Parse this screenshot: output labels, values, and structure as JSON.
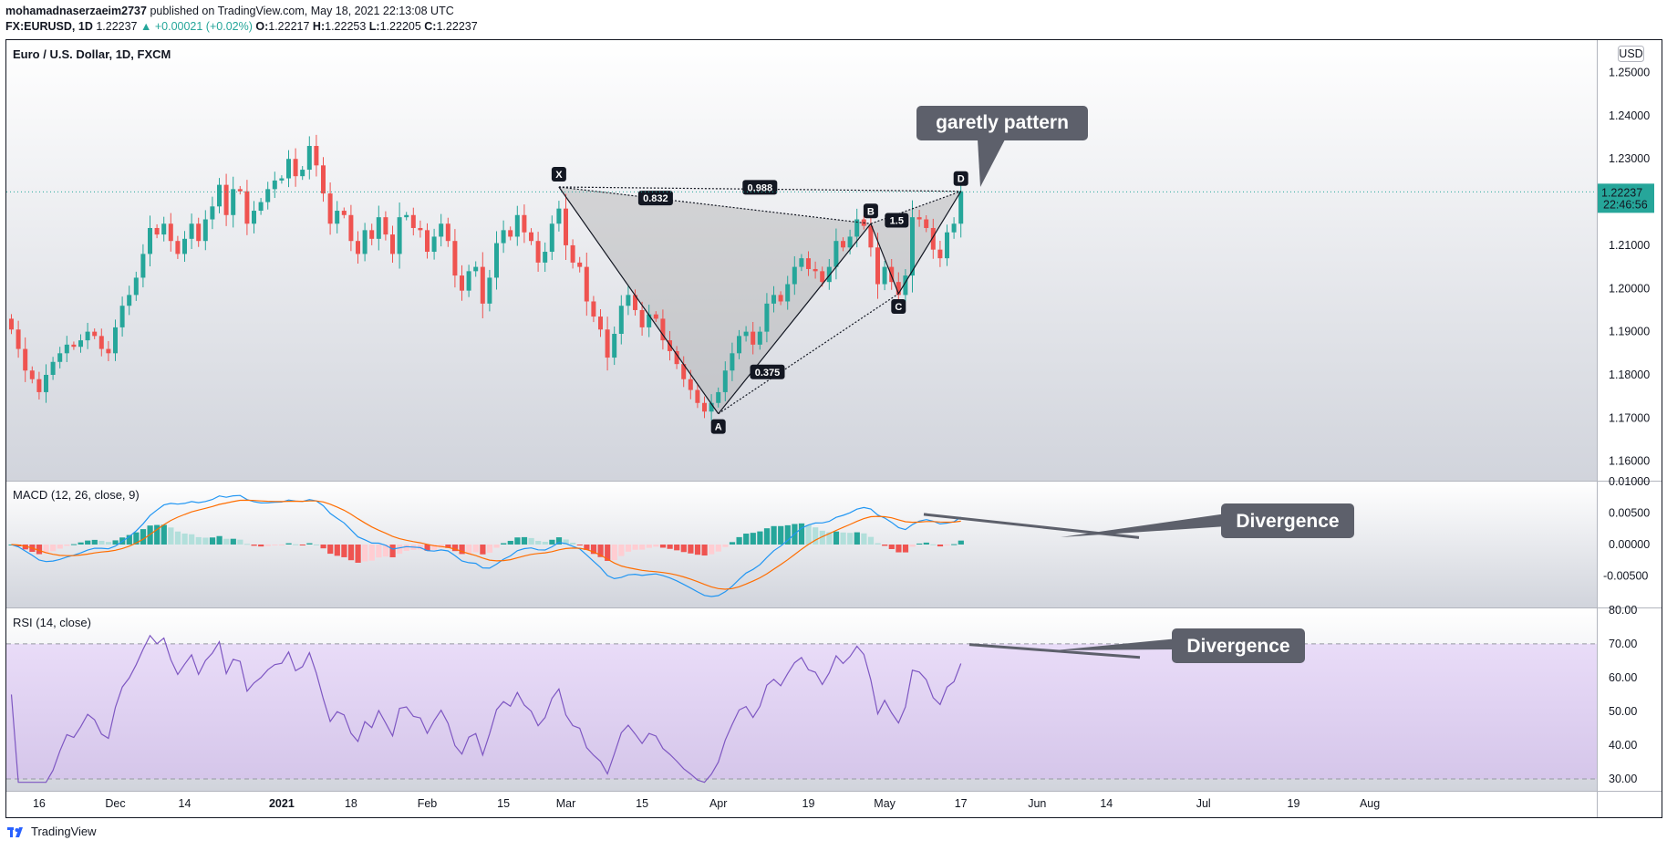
{
  "header": {
    "line1_user": "mohamadnaserzaeim2737",
    "line1_rest": "published on TradingView.com, May 18, 2021 22:13:08 UTC",
    "symbol": "FX:EURUSD, 1D",
    "last": "1.22237",
    "change": "▲ +0.00021 (+0.02%)",
    "o_label": "O:",
    "o": "1.22217",
    "h_label": "H:",
    "h": "1.22253",
    "l_label": "L:",
    "l": "1.22205",
    "c_label": "C:",
    "c": "1.22237"
  },
  "price_pane": {
    "title": "Euro / U.S. Dollar, 1D, FXCM",
    "currency": "USD",
    "last_price": "1.22237",
    "countdown": "22:46:56"
  },
  "macd_pane": {
    "title": "MACD (12, 26, close, 9)"
  },
  "rsi_pane": {
    "title": "RSI (14, close)"
  },
  "footer": {
    "brand": "TradingView"
  },
  "annotations": {
    "pattern_label": "garetly pattern",
    "macd_callout": "Divergence",
    "rsi_callout": "Divergence",
    "points": [
      "X",
      "A",
      "B",
      "C",
      "D"
    ],
    "ratios": {
      "xb": "0.832",
      "xd": "0.988",
      "ac": "0.375",
      "bd": "1.5"
    }
  },
  "colors": {
    "up": "#26a69a",
    "down": "#ef5350",
    "macd_line": "#2196f3",
    "signal_line": "#ff6d00",
    "rsi_line": "#7e57c2",
    "rsi_band": "#e1d5f3",
    "pattern_fill": "#9e9e9e",
    "callout_bg": "#5d606b"
  },
  "chart_data": [
    {
      "type": "candlestick",
      "title": "Euro / U.S. Dollar, 1D, FXCM",
      "y_ticks": [
        "1.25000",
        "1.24000",
        "1.23000",
        "1.22000",
        "1.21000",
        "1.20000",
        "1.19000",
        "1.18000",
        "1.17000",
        "1.16000"
      ],
      "ylim": [
        1.1555,
        1.2575
      ],
      "x_ticks": [
        {
          "label": "16",
          "i": 4
        },
        {
          "label": "Dec",
          "i": 15
        },
        {
          "label": "14",
          "i": 25
        },
        {
          "label": "2021",
          "i": 39
        },
        {
          "label": "18",
          "i": 49
        },
        {
          "label": "Feb",
          "i": 60
        },
        {
          "label": "15",
          "i": 71
        },
        {
          "label": "Mar",
          "i": 80
        },
        {
          "label": "15",
          "i": 91
        },
        {
          "label": "Apr",
          "i": 102
        },
        {
          "label": "19",
          "i": 115
        },
        {
          "label": "May",
          "i": 126
        },
        {
          "label": "17",
          "i": 137
        },
        {
          "label": "Jun",
          "i": 148
        },
        {
          "label": "14",
          "i": 158
        },
        {
          "label": "Jul",
          "i": 172
        },
        {
          "label": "19",
          "i": 185
        },
        {
          "label": "Aug",
          "i": 196
        }
      ],
      "pattern_points": {
        "X": [
          79,
          1.2235
        ],
        "A": [
          102,
          1.171
        ],
        "B": [
          124,
          1.215
        ],
        "C": [
          128,
          1.1988
        ],
        "D": [
          137,
          1.2225
        ]
      },
      "close": [
        1.1905,
        1.186,
        1.181,
        1.179,
        1.176,
        1.18,
        1.183,
        1.185,
        1.187,
        1.1865,
        1.188,
        1.19,
        1.189,
        1.186,
        1.185,
        1.191,
        1.196,
        1.1985,
        1.2025,
        1.208,
        1.214,
        1.2125,
        1.215,
        1.211,
        1.208,
        1.2115,
        1.215,
        1.211,
        1.216,
        1.219,
        1.224,
        1.217,
        1.223,
        1.2225,
        1.215,
        1.218,
        1.22,
        1.223,
        1.225,
        1.2255,
        1.23,
        1.226,
        1.2275,
        1.233,
        1.2285,
        1.222,
        1.215,
        1.218,
        1.217,
        1.211,
        1.208,
        1.2135,
        1.2115,
        1.2165,
        1.2125,
        1.208,
        1.2165,
        1.217,
        1.214,
        1.2135,
        1.2085,
        1.212,
        1.215,
        1.211,
        1.203,
        1.1995,
        1.204,
        1.205,
        1.1965,
        1.2025,
        1.2105,
        1.2135,
        1.212,
        1.217,
        1.213,
        1.211,
        1.206,
        1.2085,
        1.215,
        1.2185,
        1.21,
        1.206,
        1.205,
        1.197,
        1.1935,
        1.1905,
        1.184,
        1.1895,
        1.196,
        1.1985,
        1.195,
        1.191,
        1.194,
        1.193,
        1.188,
        1.1855,
        1.1825,
        1.179,
        1.1765,
        1.1735,
        1.1715,
        1.1735,
        1.176,
        1.181,
        1.185,
        1.189,
        1.19,
        1.187,
        1.19,
        1.1965,
        1.1985,
        1.197,
        1.201,
        1.205,
        1.207,
        1.2045,
        1.204,
        1.2015,
        1.205,
        1.211,
        1.2095,
        1.212,
        1.216,
        1.2145,
        1.2095,
        1.201,
        1.205,
        1.2015,
        1.1985,
        1.203,
        1.2165,
        1.216,
        1.214,
        1.209,
        1.207,
        1.213,
        1.215,
        1.2225
      ]
    },
    {
      "type": "macd",
      "title": "MACD (12, 26, close, 9)",
      "y_ticks": [
        "0.01000",
        "0.00500",
        "0.00000",
        "-0.00500"
      ],
      "ylim": [
        -0.01,
        0.01
      ]
    },
    {
      "type": "rsi",
      "title": "RSI (14, close)",
      "y_ticks": [
        "80.00",
        "70.00",
        "60.00",
        "50.00",
        "40.00",
        "30.00"
      ],
      "ylim": [
        26.5,
        80.5
      ],
      "band": [
        30,
        70
      ]
    }
  ]
}
